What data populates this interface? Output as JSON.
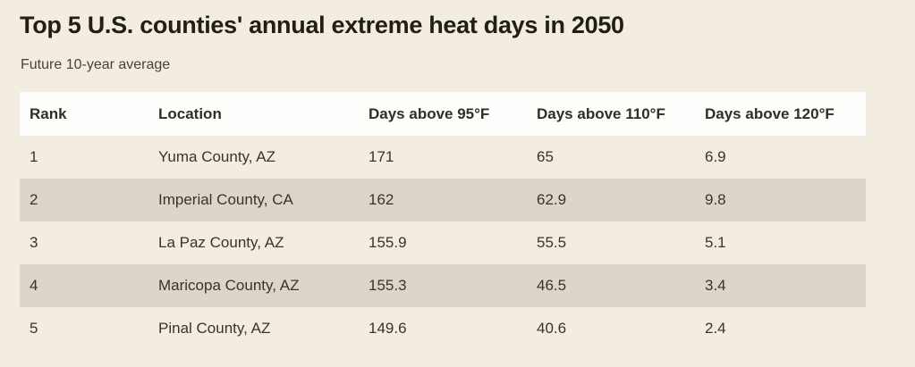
{
  "page": {
    "title": "Top 5 U.S. counties' annual extreme heat days in 2050",
    "subtitle": "Future 10-year average"
  },
  "colors": {
    "page_background": "#f3ede1",
    "header_row_background": "#fdfdfb",
    "alternate_row_background": "#dcd5ca",
    "title_text": "#211e17",
    "subtitle_text": "#474338",
    "body_text": "#393429"
  },
  "chart_data": {
    "type": "table",
    "title": "Top 5 U.S. counties' annual extreme heat days in 2050",
    "subtitle": "Future 10-year average",
    "columns": [
      "Rank",
      "Location",
      "Days above 95°F",
      "Days above 110°F",
      "Days above 120°F"
    ],
    "rows": [
      [
        "1",
        "Yuma County, AZ",
        "171",
        "65",
        "6.9"
      ],
      [
        "2",
        "Imperial County, CA",
        "162",
        "62.9",
        "9.8"
      ],
      [
        "3",
        "La Paz County, AZ",
        "155.9",
        "55.5",
        "5.1"
      ],
      [
        "4",
        "Maricopa County, AZ",
        "155.3",
        "46.5",
        "3.4"
      ],
      [
        "5",
        "Pinal County, AZ",
        "149.6",
        "40.6",
        "2.4"
      ]
    ],
    "layout": {
      "striped_rows": true,
      "stripe_pattern": "even rows shaded",
      "header_background": "white",
      "gridlines": false
    }
  }
}
